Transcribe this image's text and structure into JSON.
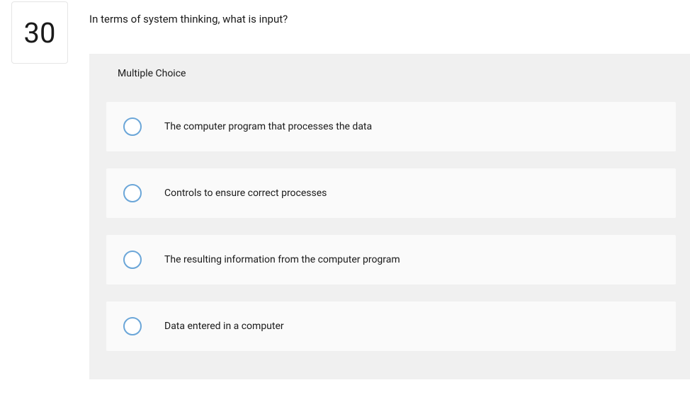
{
  "question": {
    "number": "30",
    "text": "In terms of system thinking, what is input?",
    "type_label": "Multiple Choice"
  },
  "options": [
    {
      "label": "The computer program that processes the data"
    },
    {
      "label": "Controls to ensure correct processes"
    },
    {
      "label": "The resulting information from the computer program"
    },
    {
      "label": "Data entered in a computer"
    }
  ],
  "styling": {
    "question_number_fontsize": 40,
    "question_text_fontsize": 15,
    "option_text_fontsize": 14,
    "radio_border_color": "#6ba6d8",
    "panel_bg": "#f0f0f0",
    "option_bg": "#fafafa",
    "border_color": "#e5e5e5",
    "text_color": "#1a1a1a"
  }
}
